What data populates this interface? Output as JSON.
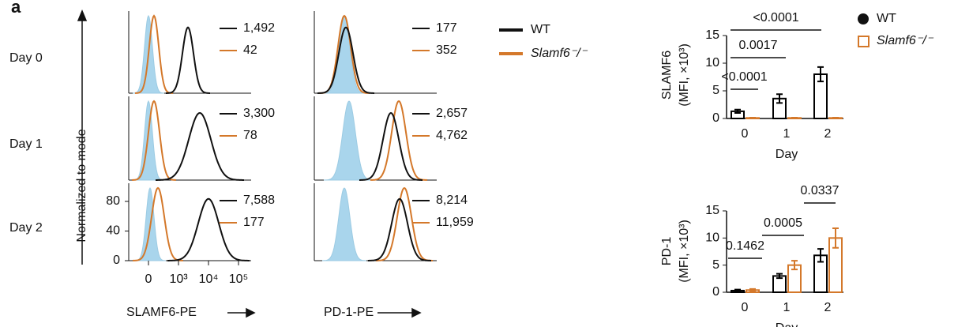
{
  "flow": {
    "panel_label": "a",
    "y_label": "Normalized to mode",
    "yticks": [
      "80",
      "40",
      "0"
    ],
    "xticks": [
      "0",
      "10³",
      "10⁴",
      "10⁵"
    ],
    "x_labels": [
      "SLAMF6-PE",
      "PD-1-PE"
    ],
    "legend": [
      "WT",
      "Slamf6⁻/⁻"
    ],
    "rows": [
      {
        "label": "Day 0",
        "slamf6": [
          "1,492",
          "42"
        ],
        "pd1": [
          "177",
          "352"
        ]
      },
      {
        "label": "Day 1",
        "slamf6": [
          "3,300",
          "78"
        ],
        "pd1": [
          "2,657",
          "4,762"
        ]
      },
      {
        "label": "Day 2",
        "slamf6": [
          "7,588",
          "177"
        ],
        "pd1": [
          "8,214",
          "11,959"
        ]
      }
    ]
  },
  "chart_data": [
    {
      "type": "bar",
      "y_label": [
        "SLAMF6",
        "(MFI, ×10³)"
      ],
      "x_label": "Day",
      "categories": [
        "0",
        "1",
        "2"
      ],
      "series": [
        {
          "name": "WT",
          "color": "#000000",
          "values": [
            1.3,
            3.6,
            8.0
          ],
          "errors": [
            0.3,
            0.8,
            1.3
          ]
        },
        {
          "name": "Slamf6⁻/⁻",
          "color": "#d4782a",
          "values": [
            0.1,
            0.1,
            0.1
          ],
          "errors": [
            0.05,
            0.05,
            0.05
          ]
        }
      ],
      "ylim": [
        0,
        15
      ],
      "yticks": [
        0,
        5,
        10,
        15
      ],
      "significance": [
        "<0.0001",
        "0.0017",
        "<0.0001"
      ]
    },
    {
      "type": "bar",
      "y_label": [
        "PD-1",
        "(MFI, ×10³)"
      ],
      "x_label": "Day",
      "categories": [
        "0",
        "1",
        "2"
      ],
      "series": [
        {
          "color": "#000000",
          "values": [
            0.3,
            3.0,
            6.8
          ],
          "errors": [
            0.2,
            0.4,
            1.2
          ]
        },
        {
          "color": "#d4782a",
          "values": [
            0.4,
            5.0,
            10.0
          ],
          "errors": [
            0.2,
            0.8,
            1.8
          ]
        }
      ],
      "ylim": [
        0,
        15
      ],
      "yticks": [
        0,
        5,
        10,
        15
      ],
      "significance": [
        "0.1462",
        "0.0005",
        "0.0337"
      ]
    }
  ]
}
